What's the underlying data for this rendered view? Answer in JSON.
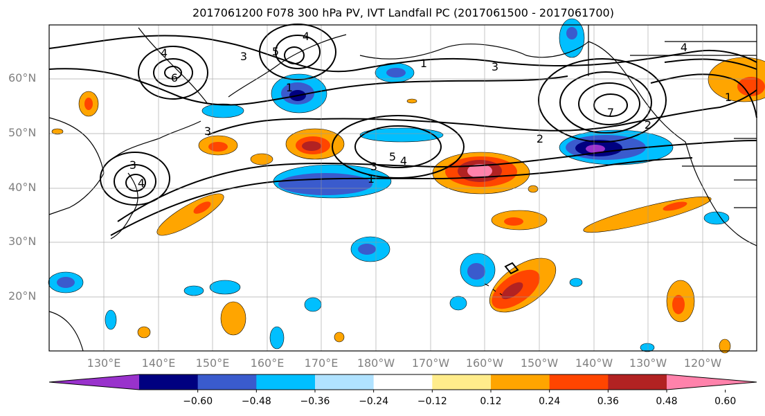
{
  "title": "2017061200 F078 300 hPa PV, IVT Landfall PC (2017061500 - 2017061700)",
  "lat_labels": [
    "60°N",
    "50°N",
    "40°N",
    "30°N",
    "20°N"
  ],
  "lon_labels": [
    "130°E",
    "140°E",
    "150°E",
    "160°E",
    "170°E",
    "180°W",
    "170°W",
    "160°W",
    "150°W",
    "140°W",
    "130°W",
    "120°W"
  ],
  "colorbar": {
    "ticks": [
      "−0.60",
      "−0.48",
      "−0.36",
      "−0.24",
      "−0.12",
      "0.12",
      "0.24",
      "0.36",
      "0.48",
      "0.60"
    ],
    "colors": [
      "#9932cc",
      "#000080",
      "#3a5bcd",
      "#00bfff",
      "#b0e2ff",
      "#ffffff",
      "#ffec8b",
      "#ffa500",
      "#ff4500",
      "#b22222",
      "#ff82ab"
    ]
  },
  "contour_labels": [
    "4",
    "3",
    "5",
    "4",
    "6",
    "1",
    "3",
    "1",
    "3",
    "7",
    "4",
    "2",
    "3",
    "5",
    "4",
    "3",
    "1",
    "2",
    "4",
    "1"
  ]
}
